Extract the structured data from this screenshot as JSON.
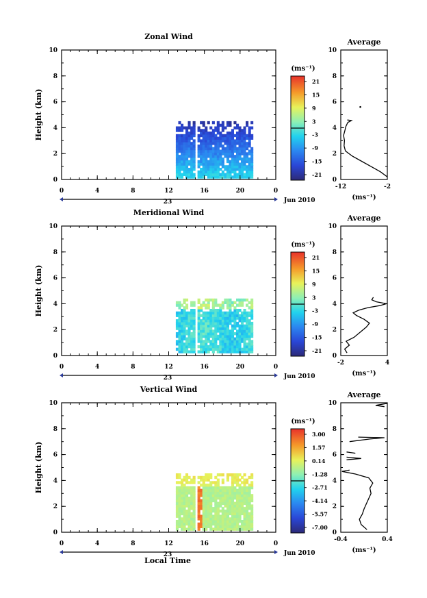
{
  "figure": {
    "date_label": "Jun 2010",
    "day_label": "23",
    "x_axis_label": "Local Time",
    "y_axis_label": "Height (km)",
    "units_label": "(ms⁻¹)",
    "average_title": "Average"
  },
  "chart_data": [
    {
      "type": "heatmap",
      "title": "Zonal Wind",
      "xlabel": "",
      "ylabel": "Height (km)",
      "xlim": [
        0,
        24
      ],
      "ylim": [
        0,
        10
      ],
      "x_ticks": [
        "0",
        "4",
        "8",
        "12",
        "16",
        "20",
        "0"
      ],
      "y_ticks": [
        "0",
        "2",
        "4",
        "6",
        "8",
        "10"
      ],
      "colorbar": {
        "label": "(ms⁻¹)",
        "ticks": [
          "21",
          "15",
          "9",
          "3",
          "-3",
          "-9",
          "-15",
          "-21"
        ],
        "range": [
          -24,
          24
        ]
      },
      "data_extent": {
        "time_start": 12.8,
        "time_end": 21.4,
        "height_min": 0.1,
        "height_max": 4.4
      },
      "profile": {
        "title": "Average",
        "xlabel": "(ms⁻¹)",
        "xlim": [
          -12,
          -2
        ],
        "x_ticks": [
          "-12",
          "-2"
        ],
        "y_ticks": [
          "0",
          "2",
          "4",
          "6",
          "8",
          "10"
        ],
        "values": [
          [
            -2.0,
            0.2
          ],
          [
            -3.5,
            0.6
          ],
          [
            -5.5,
            1.0
          ],
          [
            -7.5,
            1.4
          ],
          [
            -9.5,
            1.8
          ],
          [
            -11.0,
            2.2
          ],
          [
            -11.3,
            2.6
          ],
          [
            -11.2,
            3.0
          ],
          [
            -11.4,
            3.4
          ],
          [
            -11.1,
            3.8
          ],
          [
            -10.9,
            4.1
          ],
          [
            -10.5,
            4.4
          ],
          [
            -9.7,
            4.55
          ],
          [
            -10.6,
            4.6
          ]
        ],
        "outlier": [
          -7.8,
          5.6
        ]
      }
    },
    {
      "type": "heatmap",
      "title": "Meridional Wind",
      "xlabel": "",
      "ylabel": "Height (km)",
      "xlim": [
        0,
        24
      ],
      "ylim": [
        0,
        10
      ],
      "x_ticks": [
        "0",
        "4",
        "8",
        "12",
        "16",
        "20",
        "0"
      ],
      "y_ticks": [
        "0",
        "2",
        "4",
        "6",
        "8",
        "10"
      ],
      "colorbar": {
        "label": "(ms⁻¹)",
        "ticks": [
          "21",
          "15",
          "9",
          "3",
          "-3",
          "-9",
          "-15",
          "-21"
        ],
        "range": [
          -24,
          24
        ]
      },
      "data_extent": {
        "time_start": 12.8,
        "time_end": 21.4,
        "height_min": 0.2,
        "height_max": 4.3
      },
      "profile": {
        "title": "Average",
        "xlabel": "(ms⁻¹)",
        "xlim": [
          -2,
          4
        ],
        "x_ticks": [
          "-2",
          "4"
        ],
        "y_ticks": [
          "0",
          "2",
          "4",
          "6",
          "8",
          "10"
        ],
        "values": [
          [
            -1.2,
            0.2
          ],
          [
            -1.5,
            0.5
          ],
          [
            -0.9,
            0.8
          ],
          [
            -1.3,
            1.1
          ],
          [
            -0.3,
            1.4
          ],
          [
            0.5,
            1.8
          ],
          [
            1.3,
            2.2
          ],
          [
            1.7,
            2.5
          ],
          [
            1.0,
            2.8
          ],
          [
            0.0,
            3.1
          ],
          [
            -0.4,
            3.3
          ],
          [
            0.3,
            3.5
          ],
          [
            1.5,
            3.7
          ],
          [
            3.0,
            3.85
          ],
          [
            3.9,
            4.0
          ],
          [
            2.6,
            4.15
          ],
          [
            2.0,
            4.3
          ],
          [
            2.2,
            4.5
          ]
        ]
      }
    },
    {
      "type": "heatmap",
      "title": "Vertical Wind",
      "xlabel": "Local Time",
      "ylabel": "Height (km)",
      "xlim": [
        0,
        24
      ],
      "ylim": [
        0,
        10
      ],
      "x_ticks": [
        "0",
        "4",
        "8",
        "12",
        "16",
        "20",
        "0"
      ],
      "y_ticks": [
        "0",
        "2",
        "4",
        "6",
        "8",
        "10"
      ],
      "colorbar": {
        "label": "(ms⁻¹)",
        "ticks": [
          "3.00",
          "1.57",
          "0.14",
          "-1.28",
          "-2.71",
          "-4.14",
          "-5.57",
          "-7.00"
        ],
        "range": [
          -7.7,
          3.7
        ]
      },
      "data_extent": {
        "time_start": 12.8,
        "time_end": 21.4,
        "height_min": 0.15,
        "height_max": 4.4
      },
      "profile": {
        "title": "Average",
        "xlabel": "(ms⁻¹)",
        "xlim": [
          -0.4,
          0.4
        ],
        "x_ticks": [
          "-0.4",
          "0.4"
        ],
        "y_ticks": [
          "0",
          "2",
          "4",
          "6",
          "8",
          "10"
        ],
        "values": [
          [
            0.05,
            0.2
          ],
          [
            -0.05,
            0.6
          ],
          [
            -0.08,
            1.0
          ],
          [
            -0.03,
            1.4
          ],
          [
            0.0,
            1.8
          ],
          [
            0.04,
            2.2
          ],
          [
            0.08,
            2.6
          ],
          [
            0.12,
            3.0
          ],
          [
            0.1,
            3.4
          ],
          [
            0.15,
            3.8
          ],
          [
            0.08,
            4.2
          ],
          [
            -0.15,
            4.5
          ],
          [
            -0.38,
            4.7
          ],
          [
            -0.25,
            4.8
          ]
        ],
        "segments": [
          [
            [
              -0.3,
              5.6
            ],
            [
              -0.05,
              5.7
            ],
            [
              -0.3,
              5.8
            ]
          ],
          [
            [
              -0.25,
              7.0
            ],
            [
              0.1,
              7.2
            ],
            [
              0.35,
              7.3
            ],
            [
              -0.1,
              7.35
            ]
          ],
          [
            [
              -0.15,
              6.1
            ],
            [
              -0.3,
              6.2
            ]
          ],
          [
            [
              0.35,
              9.7
            ],
            [
              0.2,
              9.8
            ],
            [
              0.4,
              9.95
            ]
          ]
        ]
      }
    }
  ]
}
